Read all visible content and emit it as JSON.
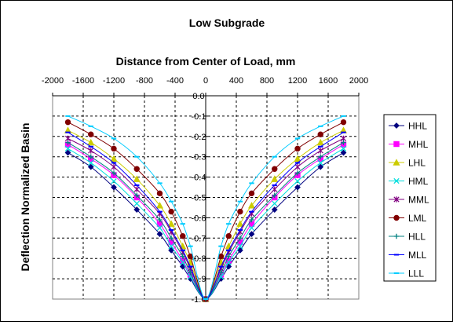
{
  "chart_data": {
    "type": "line",
    "title": "Low Subgrade",
    "xlabel": "Distance from Center of Load, mm",
    "ylabel": "Deflection Normalized Basin",
    "x_axis_position": "top",
    "y_axis_position": "center",
    "xlim": [
      -2000,
      2000
    ],
    "ylim": [
      0,
      1
    ],
    "y_inverted": true,
    "xticks": [
      -2000,
      -1600,
      -1200,
      -800,
      -400,
      0,
      400,
      800,
      1200,
      1600,
      2000
    ],
    "yticks": [
      "0.0",
      "-0.1",
      "-0.2",
      "-0.3",
      "-0.4",
      "-0.5",
      "-0.6",
      "-0.7",
      "-0.8",
      "-0.9",
      "-1.0"
    ],
    "grid": true,
    "legend_position": "right",
    "x": [
      -1800,
      -1500,
      -1200,
      -900,
      -600,
      -450,
      -300,
      -200,
      0,
      200,
      300,
      450,
      600,
      900,
      1200,
      1500,
      1800
    ],
    "series": [
      {
        "name": "HHL",
        "color": "#000080",
        "marker": "diamond",
        "values": [
          -0.28,
          -0.35,
          -0.45,
          -0.56,
          -0.68,
          -0.76,
          -0.84,
          -0.9,
          -1.0,
          -0.9,
          -0.84,
          -0.76,
          -0.68,
          -0.56,
          -0.45,
          -0.35,
          -0.28
        ]
      },
      {
        "name": "MHL",
        "color": "#ff00ff",
        "marker": "square",
        "values": [
          -0.24,
          -0.31,
          -0.39,
          -0.5,
          -0.63,
          -0.72,
          -0.81,
          -0.88,
          -1.0,
          -0.88,
          -0.81,
          -0.72,
          -0.63,
          -0.5,
          -0.39,
          -0.31,
          -0.24
        ]
      },
      {
        "name": "LHL",
        "color": "#cccc00",
        "marker": "triangle",
        "values": [
          -0.17,
          -0.23,
          -0.31,
          -0.41,
          -0.54,
          -0.63,
          -0.74,
          -0.82,
          -1.0,
          -0.82,
          -0.74,
          -0.63,
          -0.54,
          -0.41,
          -0.31,
          -0.23,
          -0.17
        ]
      },
      {
        "name": "HML",
        "color": "#00dddd",
        "marker": "x",
        "values": [
          -0.26,
          -0.33,
          -0.42,
          -0.53,
          -0.65,
          -0.74,
          -0.82,
          -0.89,
          -1.0,
          -0.89,
          -0.82,
          -0.74,
          -0.65,
          -0.53,
          -0.42,
          -0.33,
          -0.26
        ]
      },
      {
        "name": "MML",
        "color": "#800080",
        "marker": "asterisk",
        "values": [
          -0.21,
          -0.27,
          -0.35,
          -0.46,
          -0.58,
          -0.67,
          -0.77,
          -0.85,
          -1.0,
          -0.85,
          -0.77,
          -0.67,
          -0.58,
          -0.46,
          -0.35,
          -0.27,
          -0.21
        ]
      },
      {
        "name": "LML",
        "color": "#800000",
        "marker": "circle",
        "values": [
          -0.13,
          -0.19,
          -0.26,
          -0.36,
          -0.48,
          -0.57,
          -0.69,
          -0.79,
          -1.0,
          -0.79,
          -0.69,
          -0.57,
          -0.48,
          -0.36,
          -0.26,
          -0.19,
          -0.13
        ]
      },
      {
        "name": "HLL",
        "color": "#008080",
        "marker": "plus",
        "values": [
          -0.23,
          -0.3,
          -0.38,
          -0.49,
          -0.61,
          -0.7,
          -0.79,
          -0.87,
          -1.0,
          -0.87,
          -0.79,
          -0.7,
          -0.61,
          -0.49,
          -0.38,
          -0.3,
          -0.23
        ]
      },
      {
        "name": "MLL",
        "color": "#0000ff",
        "marker": "dash",
        "values": [
          -0.18,
          -0.25,
          -0.33,
          -0.44,
          -0.57,
          -0.66,
          -0.76,
          -0.84,
          -1.0,
          -0.84,
          -0.76,
          -0.66,
          -0.57,
          -0.44,
          -0.33,
          -0.25,
          -0.18
        ]
      },
      {
        "name": "LLL",
        "color": "#00ccff",
        "marker": "dash",
        "values": [
          -0.1,
          -0.15,
          -0.21,
          -0.3,
          -0.43,
          -0.52,
          -0.63,
          -0.74,
          -1.0,
          -0.74,
          -0.63,
          -0.52,
          -0.43,
          -0.3,
          -0.21,
          -0.15,
          -0.1
        ]
      }
    ]
  }
}
